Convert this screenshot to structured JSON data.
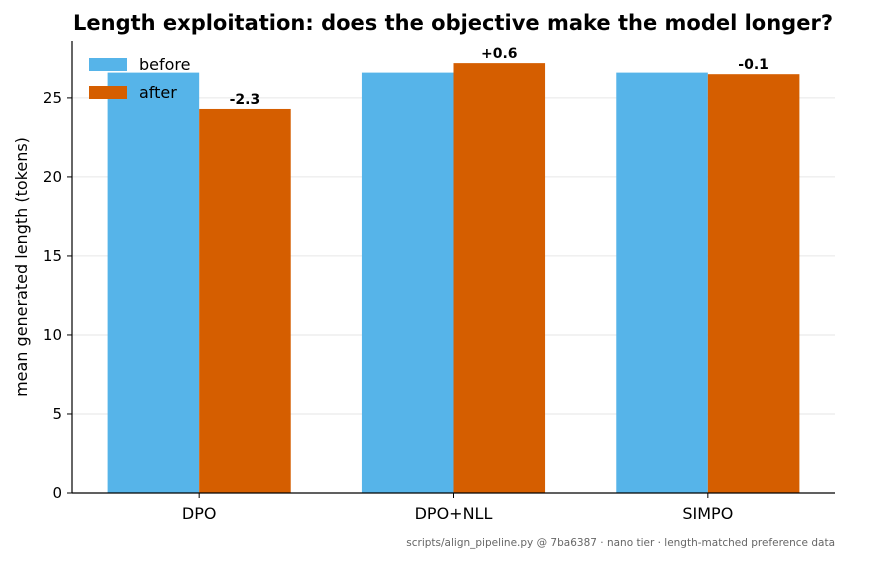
{
  "chart_data": {
    "type": "bar",
    "title": "Length exploitation: does the objective make the model longer?",
    "xlabel": "",
    "ylabel": "mean generated length (tokens)",
    "categories": [
      "DPO",
      "DPO+NLL",
      "SIMPO"
    ],
    "series": [
      {
        "name": "before",
        "values": [
          26.6,
          26.6,
          26.6
        ],
        "color": "#56b4e9"
      },
      {
        "name": "after",
        "values": [
          24.3,
          27.2,
          26.5
        ],
        "color": "#d55e00"
      }
    ],
    "delta_labels": [
      "-2.3",
      "+0.6",
      "-0.1"
    ],
    "ylim": [
      0,
      28.6
    ],
    "yticks": [
      0,
      5,
      10,
      15,
      20,
      25
    ],
    "grid": "horizontal",
    "legend": "top-left",
    "footnote": "scripts/align_pipeline.py @ 7ba6387 · nano tier · length-matched preference data"
  }
}
